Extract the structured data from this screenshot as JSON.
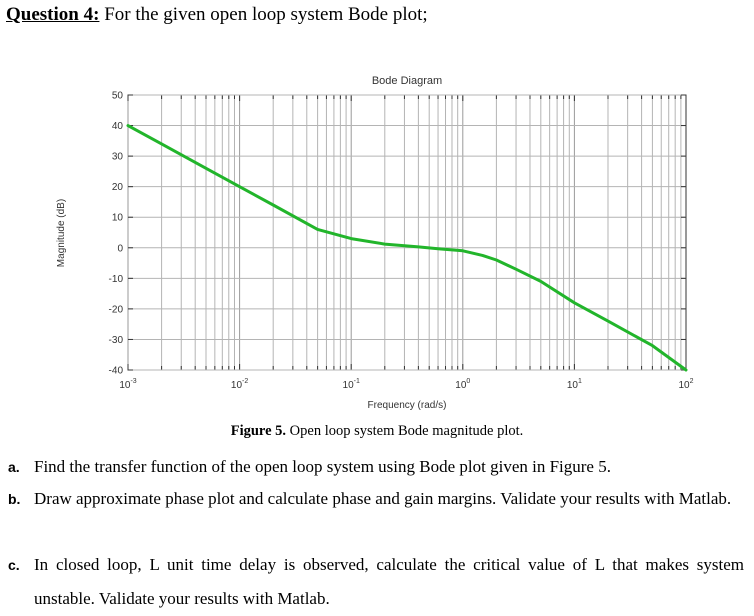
{
  "heading": {
    "number": "Question 4:",
    "text": " For the given open loop system Bode plot;"
  },
  "chart_data": {
    "type": "line",
    "title": "Bode Diagram",
    "xlabel": "Frequency  (rad/s)",
    "ylabel": "Magnitude (dB)",
    "x_scale": "log",
    "xlim": [
      0.001,
      100
    ],
    "ylim": [
      -40,
      50
    ],
    "x_ticks": [
      {
        "base": "10",
        "exp": "-3"
      },
      {
        "base": "10",
        "exp": "-2"
      },
      {
        "base": "10",
        "exp": "-1"
      },
      {
        "base": "10",
        "exp": "0"
      },
      {
        "base": "10",
        "exp": "1"
      },
      {
        "base": "10",
        "exp": "2"
      }
    ],
    "y_ticks": [
      "50",
      "40",
      "30",
      "20",
      "10",
      "0",
      "-10",
      "-20",
      "-30",
      "-40"
    ],
    "grid": true,
    "line_color": "#22b52b",
    "series": [
      {
        "x": [
          0.001,
          0.002,
          0.005,
          0.01,
          0.02,
          0.05,
          0.1,
          0.2,
          0.4,
          0.6,
          1,
          1.5,
          2,
          3,
          5,
          10,
          20,
          50,
          100
        ],
        "y": [
          40,
          34,
          26,
          20,
          14,
          6,
          3,
          1.2,
          0.3,
          -0.3,
          -1,
          -2.5,
          -4,
          -7,
          -11,
          -18,
          -24,
          -32,
          -40
        ]
      }
    ]
  },
  "caption": {
    "label": "Figure 5.",
    "text": " Open loop system Bode magnitude plot."
  },
  "questions": [
    {
      "letter": "a.",
      "text": "Find the transfer function of the open loop system using Bode plot given in Figure 5."
    },
    {
      "letter": "b.",
      "text": "Draw approximate phase plot and calculate phase and gain margins. Validate your results with Matlab."
    },
    {
      "letter": "c.",
      "text": "In closed loop, L unit time delay is observed, calculate the critical value of L that makes system unstable. Validate your results with Matlab."
    }
  ]
}
